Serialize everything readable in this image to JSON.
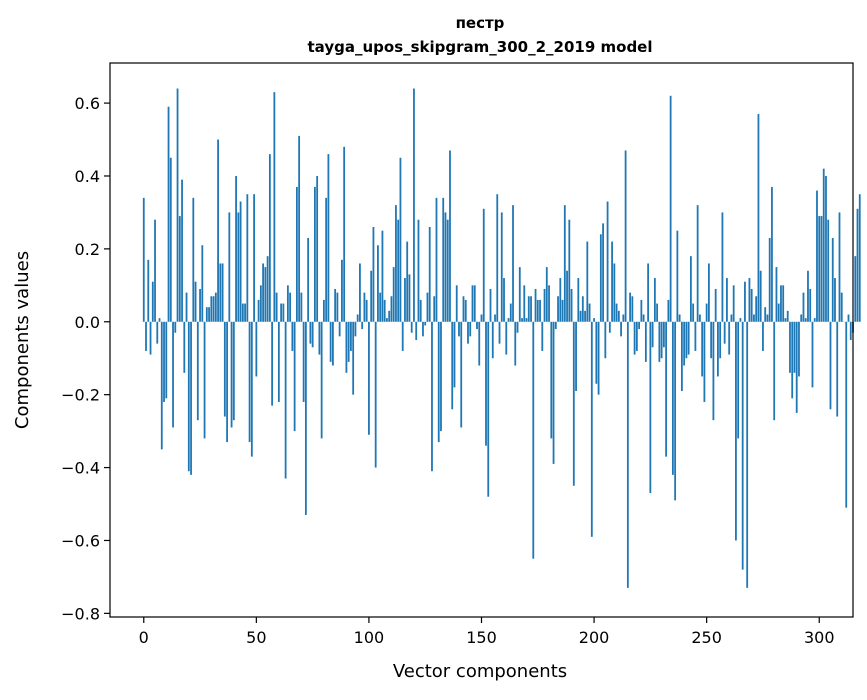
{
  "chart_data": {
    "type": "bar",
    "title": "пестр",
    "subtitle": "tayga_upos_skipgram_300_2_2019 model",
    "xlabel": "Vector components",
    "ylabel": "Components values",
    "xlim": [
      -15,
      315
    ],
    "ylim": [
      -0.81,
      0.71
    ],
    "xticks": [
      0,
      50,
      100,
      150,
      200,
      250,
      300
    ],
    "yticks": [
      -0.8,
      -0.6,
      -0.4,
      -0.2,
      0.0,
      0.2,
      0.4,
      0.6
    ],
    "ytick_labels": [
      "−0.8",
      "−0.6",
      "−0.4",
      "−0.2",
      "0.0",
      "0.2",
      "0.4",
      "0.6"
    ],
    "xtick_labels": [
      "0",
      "50",
      "100",
      "150",
      "200",
      "250",
      "300"
    ],
    "bar_color": "#1f77b4",
    "values": [
      0.34,
      -0.08,
      0.17,
      -0.09,
      0.11,
      0.28,
      -0.06,
      0.01,
      -0.35,
      -0.22,
      -0.21,
      0.59,
      0.45,
      -0.29,
      -0.03,
      0.64,
      0.29,
      0.39,
      -0.14,
      0.08,
      -0.41,
      -0.42,
      0.34,
      0.11,
      -0.27,
      0.09,
      0.21,
      -0.32,
      0.04,
      0.04,
      0.07,
      0.07,
      0.08,
      0.5,
      0.16,
      0.16,
      -0.26,
      -0.33,
      0.3,
      -0.29,
      -0.27,
      0.4,
      0.3,
      0.33,
      0.05,
      0.05,
      0.35,
      -0.33,
      -0.37,
      0.35,
      -0.15,
      0.06,
      0.1,
      0.16,
      0.15,
      0.18,
      0.46,
      -0.23,
      0.63,
      0.08,
      -0.22,
      0.05,
      0.05,
      -0.43,
      0.1,
      0.08,
      -0.08,
      -0.3,
      0.37,
      0.51,
      0.08,
      -0.22,
      -0.53,
      0.23,
      -0.06,
      -0.07,
      0.37,
      0.4,
      -0.09,
      -0.32,
      0.06,
      0.34,
      0.46,
      -0.11,
      -0.12,
      0.09,
      0.08,
      -0.04,
      0.17,
      0.48,
      -0.14,
      -0.11,
      -0.08,
      -0.2,
      -0.04,
      0.02,
      0.16,
      -0.02,
      0.08,
      0.06,
      -0.31,
      0.14,
      0.26,
      -0.4,
      0.21,
      0.08,
      0.25,
      0.06,
      0.01,
      0.03,
      0.07,
      0.15,
      0.32,
      0.28,
      0.45,
      -0.08,
      0.12,
      0.22,
      0.13,
      -0.03,
      0.64,
      -0.05,
      0.28,
      0.06,
      -0.04,
      -0.01,
      0.08,
      0.26,
      -0.41,
      0.07,
      0.34,
      -0.33,
      -0.3,
      0.34,
      0.3,
      0.28,
      0.47,
      -0.24,
      -0.18,
      0.1,
      -0.04,
      -0.29,
      0.07,
      0.06,
      -0.06,
      -0.04,
      0.1,
      0.1,
      -0.02,
      -0.12,
      0.02,
      0.31,
      -0.34,
      -0.48,
      0.09,
      -0.1,
      0.02,
      0.35,
      -0.06,
      0.3,
      0.12,
      -0.09,
      0.01,
      0.05,
      0.32,
      -0.12,
      -0.03,
      0.15,
      0.01,
      0.1,
      0.01,
      0.07,
      0.07,
      -0.65,
      0.09,
      0.06,
      0.06,
      -0.08,
      0.09,
      0.15,
      0.1,
      -0.32,
      -0.39,
      -0.02,
      0.07,
      0.12,
      0.06,
      0.32,
      0.14,
      0.28,
      0.09,
      -0.45,
      -0.19,
      0.12,
      0.03,
      0.07,
      0.03,
      0.22,
      0.05,
      -0.59,
      0.01,
      -0.17,
      -0.2,
      0.24,
      0.27,
      -0.1,
      0.33,
      -0.03,
      0.22,
      0.16,
      0.05,
      0.03,
      -0.04,
      0.02,
      0.47,
      -0.73,
      0.08,
      0.07,
      -0.09,
      -0.08,
      -0.02,
      0.06,
      0.02,
      -0.11,
      0.16,
      -0.47,
      -0.07,
      0.12,
      0.05,
      -0.11,
      -0.1,
      -0.07,
      -0.37,
      0.06,
      0.62,
      -0.42,
      -0.49,
      0.25,
      0.02,
      -0.19,
      -0.12,
      -0.1,
      -0.09,
      0.18,
      0.05,
      -0.08,
      0.32,
      0.02,
      -0.15,
      -0.22,
      0.05,
      0.16,
      -0.1,
      -0.27,
      0.09,
      -0.15,
      -0.1,
      0.3,
      -0.06,
      0.12,
      -0.09,
      0.02,
      0.1,
      -0.6,
      -0.32,
      0.01,
      -0.68,
      0.11,
      -0.73,
      0.12,
      0.09,
      0.02,
      0.07,
      0.57,
      0.14,
      -0.08,
      0.04,
      0.02,
      0.23,
      0.37,
      -0.27,
      0.15,
      0.05,
      0.1,
      0.1,
      0.01,
      0.03,
      -0.14,
      -0.21,
      -0.14,
      -0.25,
      -0.15,
      0.02,
      0.08,
      0.01,
      0.14,
      0.09,
      -0.18,
      0.01,
      0.36,
      0.29,
      0.29,
      0.42,
      0.4,
      0.28,
      -0.24,
      0.23,
      0.12,
      -0.26,
      0.3,
      0.08,
      0.0,
      -0.51,
      0.02,
      -0.05,
      -0.03,
      0.18,
      0.31,
      0.35
    ]
  }
}
